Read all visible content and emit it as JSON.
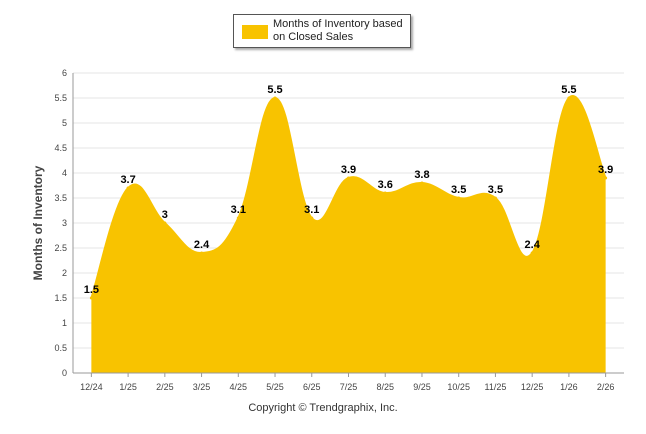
{
  "chart_data": {
    "type": "area",
    "title": "",
    "ylabel": "Months of Inventory",
    "xlabel": "",
    "ylim": [
      0,
      6
    ],
    "yticks": [
      "0",
      "0.5",
      "1",
      "1.5",
      "2",
      "2.5",
      "3",
      "3.5",
      "4",
      "4.5",
      "5",
      "5.5",
      "6"
    ],
    "categories": [
      "12/24",
      "1/25",
      "2/25",
      "3/25",
      "4/25",
      "5/25",
      "6/25",
      "7/25",
      "8/25",
      "9/25",
      "10/25",
      "11/25",
      "12/25",
      "1/26",
      "2/26"
    ],
    "series": [
      {
        "name": "Months of Inventory based on Closed Sales",
        "values": [
          1.5,
          3.7,
          3,
          2.4,
          3.1,
          5.5,
          3.1,
          3.9,
          3.6,
          3.8,
          3.5,
          3.5,
          2.4,
          5.5,
          3.9
        ],
        "labels": [
          "1.5",
          "3.7",
          "3",
          "2.4",
          "3.1",
          "5.5",
          "3.1",
          "3.9",
          "3.6",
          "3.8",
          "3.5",
          "3.5",
          "2.4",
          "5.5",
          "3.9"
        ]
      }
    ],
    "legend_position": "top-center",
    "grid": true
  },
  "legend": {
    "label": "Months of Inventory based on Closed Sales"
  },
  "credit": "Copyright © Trendgraphix, Inc.",
  "colors": {
    "fill": "#F8C300",
    "grid": "#E6E6E6",
    "axis": "#999999"
  }
}
